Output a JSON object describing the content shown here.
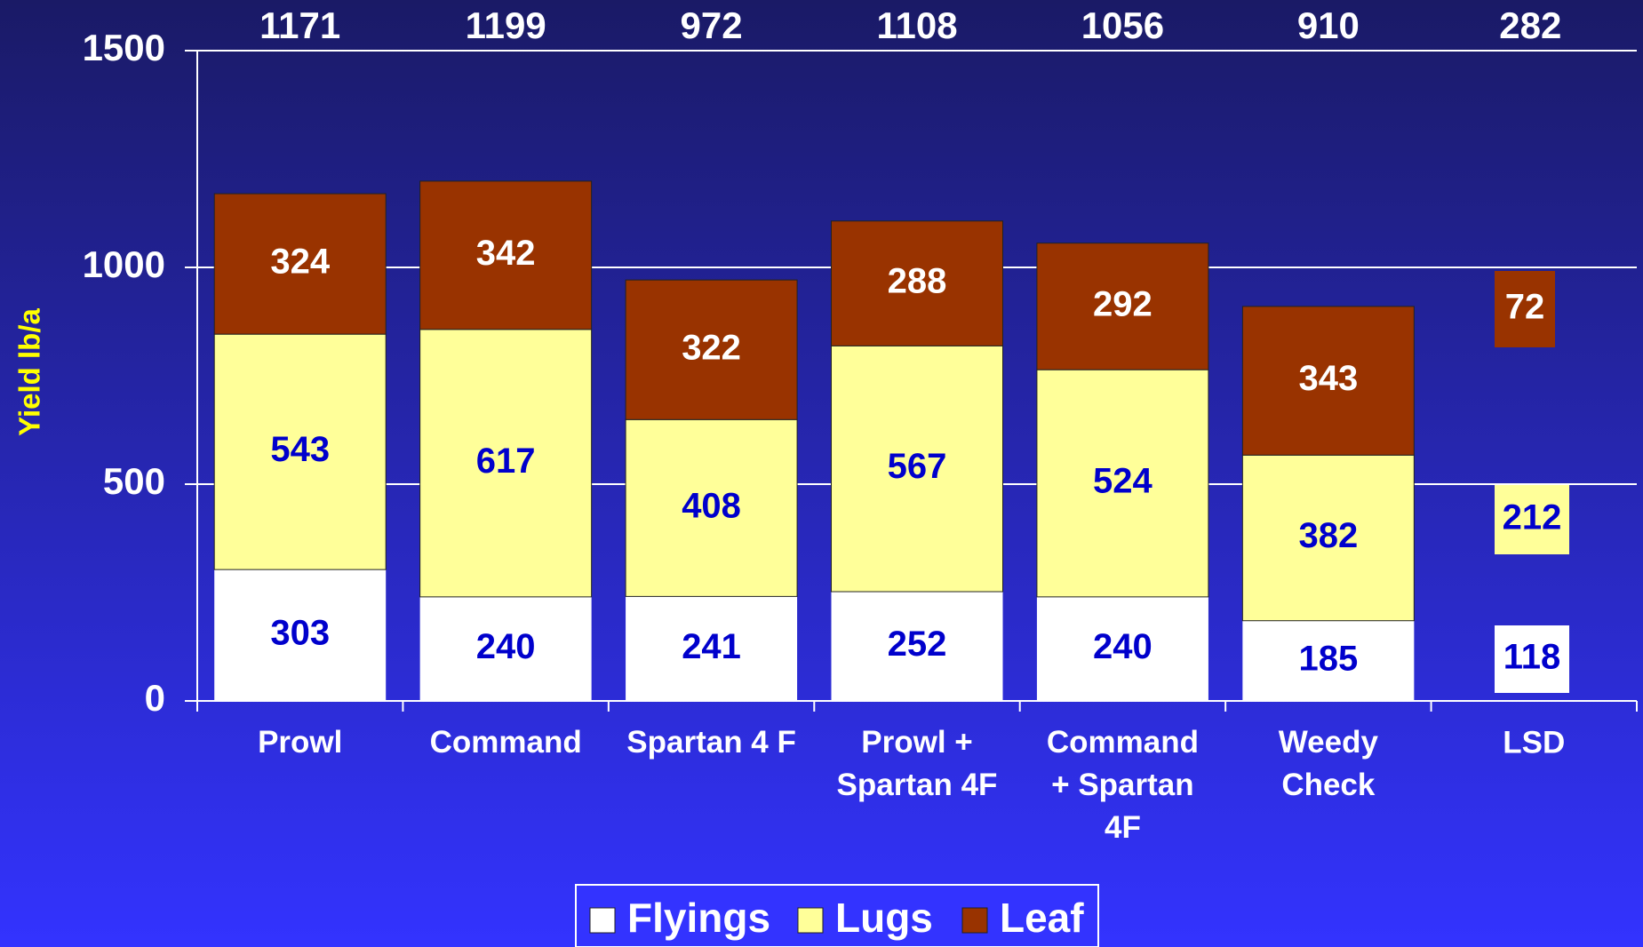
{
  "chart_data": {
    "type": "stacked_bar",
    "ylabel": "Yield lb/a",
    "categories": [
      "Prowl",
      "Command",
      "Spartan 4 F",
      "Prowl +\nSpartan 4F",
      "Command\n+ Spartan\n4F",
      "Weedy\nCheck"
    ],
    "totals": [
      1171,
      1199,
      972,
      1108,
      1056,
      910
    ],
    "series": [
      {
        "name": "Flyings",
        "color": "#ffffff",
        "values": [
          303,
          240,
          241,
          252,
          240,
          185
        ]
      },
      {
        "name": "Lugs",
        "color": "#ffff99",
        "values": [
          543,
          617,
          408,
          567,
          524,
          382
        ]
      },
      {
        "name": "Leaf",
        "color": "#993300",
        "values": [
          324,
          342,
          322,
          288,
          292,
          343
        ]
      }
    ],
    "lsd": {
      "label": "LSD",
      "total": 282,
      "values": [
        118,
        212,
        72
      ]
    },
    "ylim": [
      0,
      1500
    ],
    "yticks": [
      0,
      500,
      1000,
      1500
    ],
    "grid": true
  }
}
